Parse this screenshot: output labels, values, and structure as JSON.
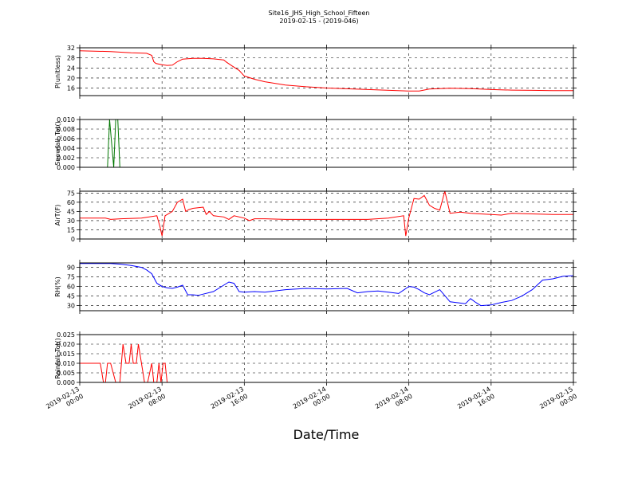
{
  "title": "Site16_JHS_High_School_Fifteen",
  "subtitle": "2019-02-15 - (2019-046)",
  "x_axis_label": "Date/Time",
  "x_tick_labels": [
    [
      "2019-02-13",
      "00:00"
    ],
    [
      "2019-02-13",
      "08:00"
    ],
    [
      "2019-02-13",
      "16:00"
    ],
    [
      "2019-02-14",
      "00:00"
    ],
    [
      "2019-02-14",
      "08:00"
    ],
    [
      "2019-02-14",
      "16:00"
    ],
    [
      "2019-02-15",
      "00:00"
    ]
  ],
  "chart_data": [
    {
      "type": "line",
      "ylabel": "P(unitless)",
      "ylim": [
        13,
        32
      ],
      "yticks": [
        16,
        20,
        24,
        28,
        32
      ],
      "ytick_labels": [
        "16",
        "20",
        "24",
        "28",
        "32"
      ],
      "grid": true,
      "xlim": [
        0,
        48
      ],
      "color": "#ff0000",
      "x": [
        0,
        3,
        5,
        6.5,
        7,
        7.2,
        7.4,
        8,
        8.5,
        9,
        9.5,
        10,
        11,
        12,
        13,
        14,
        14.3,
        14.8,
        15.5,
        16,
        17,
        18,
        20,
        22,
        24,
        28,
        32,
        33,
        34,
        35,
        36,
        38,
        40,
        42,
        44,
        46,
        48
      ],
      "y": [
        30.8,
        30.5,
        30,
        29.8,
        29,
        26.5,
        25.8,
        25.3,
        25,
        25.1,
        26.5,
        27.5,
        27.8,
        27.8,
        27.6,
        27.2,
        26.2,
        24.8,
        23,
        20.8,
        19.5,
        18.5,
        17.2,
        16.5,
        16,
        15.4,
        14.8,
        14.8,
        15.6,
        15.8,
        15.9,
        15.8,
        15.4,
        15.2,
        15.1,
        15.0,
        15.0
      ]
    },
    {
      "type": "line",
      "ylabel": "Snowfall_Tot()",
      "ylim": [
        0,
        0.01
      ],
      "yticks": [
        0,
        0.002,
        0.004,
        0.006,
        0.008,
        0.01
      ],
      "ytick_labels": [
        "0.000",
        "0.002",
        "0.004",
        "0.006",
        "0.008",
        "0.010"
      ],
      "grid": true,
      "xlim": [
        0,
        48
      ],
      "color": "#007700",
      "x": [
        0,
        2.7,
        2.9,
        3.1,
        3.3,
        3.5,
        3.7,
        3.9,
        4.1,
        48
      ],
      "y": [
        0,
        0,
        0.01,
        0.005,
        0,
        0.01,
        0.01,
        0,
        0,
        0
      ]
    },
    {
      "type": "line",
      "ylabel": "AirT(F)",
      "ylim": [
        0,
        78
      ],
      "yticks": [
        0,
        15,
        30,
        45,
        60,
        75
      ],
      "ytick_labels": [
        "0",
        "15",
        "30",
        "45",
        "60",
        "75"
      ],
      "grid": true,
      "xlim": [
        0,
        48
      ],
      "color": "#ff0000",
      "x": [
        0,
        2.5,
        3,
        4,
        6,
        7.5,
        7.8,
        8,
        8.3,
        9,
        9.5,
        10,
        10.3,
        10.6,
        11,
        12,
        12.3,
        12.6,
        13,
        14,
        14.5,
        15,
        16,
        16.5,
        17,
        18,
        20,
        24,
        28,
        30,
        31.5,
        31.7,
        32,
        32.5,
        33,
        33.5,
        34,
        34.5,
        35,
        35.5,
        36,
        37,
        38,
        39,
        40,
        41,
        42,
        44,
        46,
        48
      ],
      "y": [
        34,
        34,
        32,
        33,
        34,
        38,
        20,
        5,
        38,
        45,
        60,
        65,
        45,
        48,
        50,
        52,
        40,
        45,
        38,
        36,
        32,
        38,
        34,
        30,
        33,
        33,
        32,
        32,
        32,
        34,
        38,
        5,
        35,
        66,
        65,
        71,
        55,
        50,
        47,
        78,
        42,
        44,
        42,
        41,
        40,
        39,
        42,
        41,
        40,
        40
      ]
    },
    {
      "type": "line",
      "ylabel": "RH(%)",
      "ylim": [
        22,
        97
      ],
      "yticks": [
        30,
        45,
        60,
        75,
        90
      ],
      "ytick_labels": [
        "30",
        "45",
        "60",
        "75",
        "90"
      ],
      "grid": true,
      "xlim": [
        0,
        48
      ],
      "color": "#0000ff",
      "x": [
        0,
        3,
        4,
        5,
        6,
        6.5,
        7,
        7.5,
        8,
        8.5,
        9,
        9.5,
        10,
        10.5,
        11,
        11.5,
        12,
        13,
        14,
        14.5,
        15,
        15.5,
        16,
        17,
        18,
        20,
        22,
        24,
        26,
        27,
        28,
        29,
        30,
        31,
        32,
        32.5,
        33,
        33.5,
        34,
        35,
        36,
        37,
        37.5,
        38,
        38.5,
        39,
        40,
        41,
        42,
        43,
        44,
        45,
        46,
        47,
        48
      ],
      "y": [
        96,
        96,
        95,
        93,
        90,
        86,
        80,
        65,
        60,
        58,
        57,
        59,
        62,
        47,
        47,
        46,
        48,
        52,
        62,
        67,
        65,
        52,
        51,
        52,
        51,
        55,
        57,
        56,
        57,
        50,
        52,
        53,
        51,
        49,
        60,
        59,
        55,
        50,
        47,
        55,
        36,
        34,
        33,
        41,
        35,
        30,
        31,
        35,
        38,
        45,
        55,
        70,
        72,
        76,
        77
      ]
    },
    {
      "type": "line",
      "ylabel": "Rainfall_Tot()",
      "ylim": [
        0,
        0.025
      ],
      "yticks": [
        0,
        0.005,
        0.01,
        0.015,
        0.02,
        0.025
      ],
      "ytick_labels": [
        "0.000",
        "0.005",
        "0.010",
        "0.015",
        "0.020",
        "0.025"
      ],
      "grid": true,
      "xlim": [
        0,
        48
      ],
      "color": "#ff0000",
      "x": [
        0,
        1,
        2,
        2.3,
        2.5,
        2.7,
        3,
        3.5,
        3.9,
        4.2,
        4.5,
        4.8,
        5,
        5.2,
        5.5,
        5.7,
        6,
        6.3,
        6.6,
        7,
        7.2,
        7.5,
        7.7,
        7.9,
        8.1,
        8.3,
        8.5,
        8.7,
        9,
        48
      ],
      "y": [
        0.01,
        0.01,
        0.01,
        0.0,
        0.0,
        0.01,
        0.01,
        0.0,
        0.0,
        0.02,
        0.01,
        0.01,
        0.02,
        0.01,
        0.01,
        0.02,
        0.01,
        0.0,
        0.0,
        0.01,
        0.0,
        0.0,
        0.01,
        0.0,
        0.01,
        0.01,
        0.0,
        0.0,
        0.0,
        0.0
      ]
    }
  ]
}
